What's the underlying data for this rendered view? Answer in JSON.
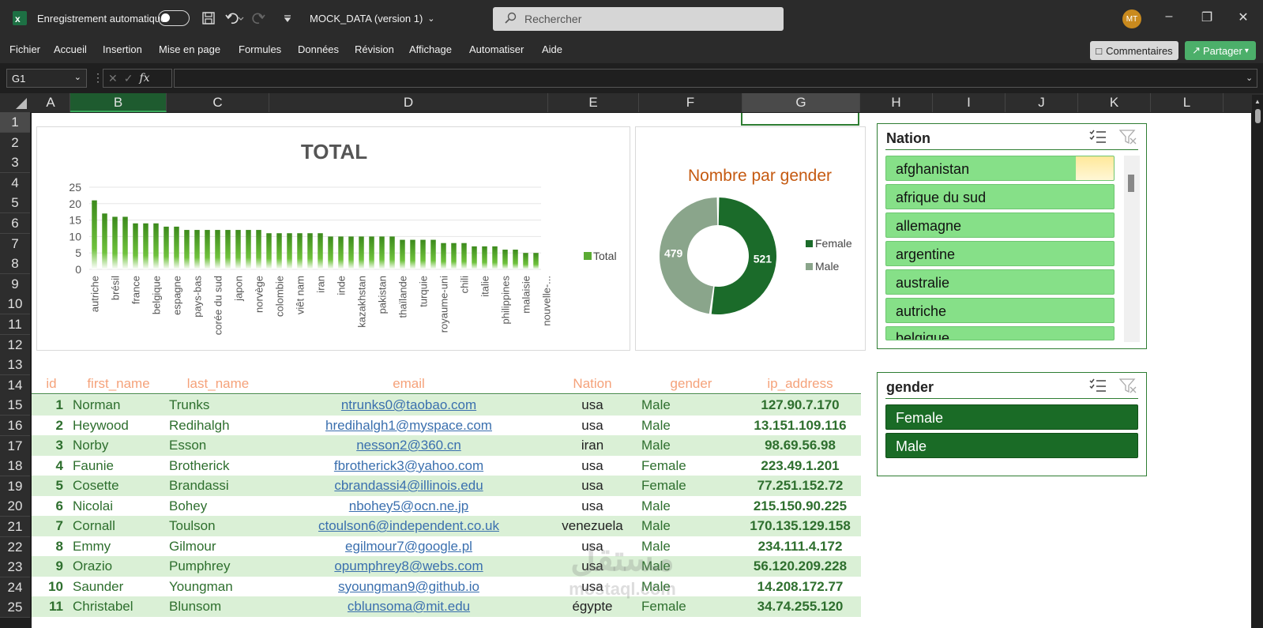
{
  "titlebar": {
    "app_icon": "excel-icon",
    "autosave_label": "Enregistrement automatique",
    "file_title": "MOCK_DATA (version 1)",
    "search_placeholder": "Rechercher",
    "avatar_initials": "MT"
  },
  "menu": {
    "items": [
      "Fichier",
      "Accueil",
      "Insertion",
      "Mise en page",
      "Formules",
      "Données",
      "Révision",
      "Affichage",
      "Automatiser",
      "Aide"
    ],
    "comments_label": "Commentaires",
    "share_label": "Partager"
  },
  "formula_bar": {
    "name_box": "G1",
    "fx": "fx",
    "formula": ""
  },
  "columns": [
    "A",
    "B",
    "C",
    "D",
    "E",
    "F",
    "G",
    "H",
    "I",
    "J",
    "K",
    "L"
  ],
  "rows": [
    "1",
    "2",
    "3",
    "4",
    "5",
    "6",
    "7",
    "8",
    "9",
    "10",
    "11",
    "12",
    "13",
    "14",
    "15",
    "16",
    "17",
    "18",
    "19",
    "20",
    "21",
    "22",
    "23",
    "24",
    "25"
  ],
  "chart_data": [
    {
      "type": "bar",
      "title": "TOTAL",
      "legend": [
        "Total"
      ],
      "legend_position": "right",
      "ylim": [
        0,
        25
      ],
      "yticks": [
        0,
        5,
        10,
        15,
        20,
        25
      ],
      "grid": true,
      "labeled_categories": [
        "autriche",
        "brésil",
        "france",
        "belgique",
        "espagne",
        "pays-bas",
        "corée du sud",
        "japon",
        "norvège",
        "colombie",
        "viêt nam",
        "iran",
        "inde",
        "kazakhstan",
        "pakistan",
        "thaïlande",
        "turquie",
        "royaume-uni",
        "chili",
        "italie",
        "philippines",
        "malaisie",
        "nouvelle-..."
      ],
      "values": [
        21,
        17,
        16,
        16,
        14,
        14,
        14,
        13,
        13,
        12,
        12,
        12,
        12,
        12,
        12,
        12,
        12,
        11,
        11,
        11,
        11,
        11,
        11,
        10,
        10,
        10,
        10,
        10,
        10,
        10,
        9,
        9,
        9,
        9,
        8,
        8,
        8,
        7,
        7,
        7,
        6,
        6,
        5,
        5
      ]
    },
    {
      "type": "pie",
      "title": "Nombre par gender",
      "categories": [
        "Female",
        "Male"
      ],
      "values": [
        521,
        479
      ],
      "colors": [
        "#1b6b2a",
        "#8aa58b"
      ],
      "legend_position": "right"
    }
  ],
  "slicers": {
    "nation": {
      "title": "Nation",
      "items": [
        "afghanistan",
        "afrique du sud",
        "allemagne",
        "argentine",
        "australie",
        "autriche",
        "belgique"
      ]
    },
    "gender": {
      "title": "gender",
      "items": [
        "Female",
        "Male"
      ]
    }
  },
  "table": {
    "headers": [
      "id",
      "first_name",
      "last_name",
      "email",
      "Nation",
      "gender",
      "ip_address"
    ],
    "rows": [
      [
        "1",
        "Norman",
        "Trunks",
        "ntrunks0@taobao.com",
        "usa",
        "Male",
        "127.90.7.170"
      ],
      [
        "2",
        "Heywood",
        "Redihalgh",
        "hredihalgh1@myspace.com",
        "usa",
        "Male",
        "13.151.109.116"
      ],
      [
        "3",
        "Norby",
        "Esson",
        "nesson2@360.cn",
        "iran",
        "Male",
        "98.69.56.98"
      ],
      [
        "4",
        "Faunie",
        "Brotherick",
        "fbrotherick3@yahoo.com",
        "usa",
        "Female",
        "223.49.1.201"
      ],
      [
        "5",
        "Cosette",
        "Brandassi",
        "cbrandassi4@illinois.edu",
        "usa",
        "Female",
        "77.251.152.72"
      ],
      [
        "6",
        "Nicolai",
        "Bohey",
        "nbohey5@ocn.ne.jp",
        "usa",
        "Male",
        "215.150.90.225"
      ],
      [
        "7",
        "Cornall",
        "Toulson",
        "ctoulson6@independent.co.uk",
        "venezuela",
        "Male",
        "170.135.129.158"
      ],
      [
        "8",
        "Emmy",
        "Gilmour",
        "egilmour7@google.pl",
        "usa",
        "Male",
        "234.111.4.172"
      ],
      [
        "9",
        "Orazio",
        "Pumphrey",
        "opumphrey8@webs.com",
        "usa",
        "Male",
        "56.120.209.228"
      ],
      [
        "10",
        "Saunder",
        "Youngman",
        "syoungman9@github.io",
        "usa",
        "Male",
        "14.208.172.77"
      ],
      [
        "11",
        "Christabel",
        "Blunsom",
        "cblunsoma@mit.edu",
        "égypte",
        "Female",
        "34.74.255.120"
      ]
    ]
  },
  "watermark": {
    "main": "مستقل",
    "sub": "mostaql.com"
  }
}
